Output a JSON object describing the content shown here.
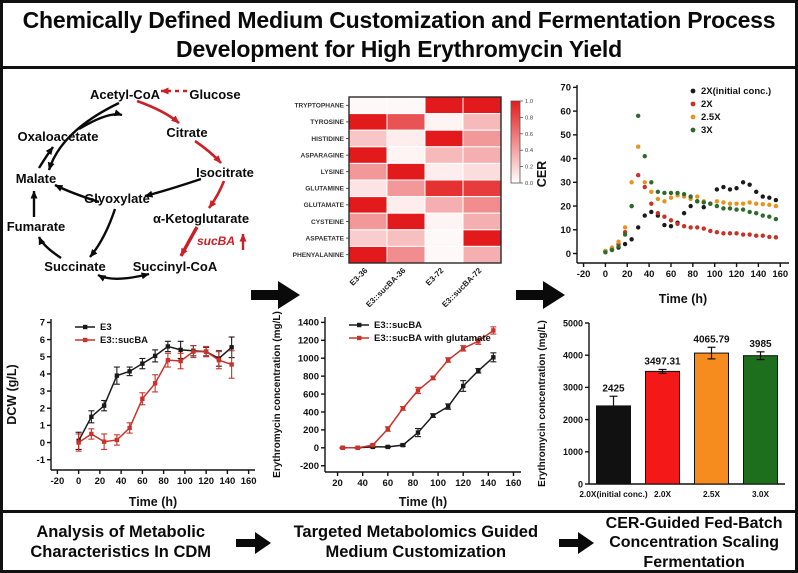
{
  "title": {
    "text": "Chemically Defined Medium Customization and Fermentation Process Development for High Erythromycin Yield"
  },
  "footer": {
    "steps": [
      "Analysis of Metabolic Characteristics In CDM",
      "Targeted Metabolomics Guided Medium Customization",
      "CER-Guided Fed-Batch Concentration Scaling Fermentation"
    ],
    "arrow_icon": "right-arrow"
  },
  "colors": {
    "accent_red": "#cc2027",
    "accent_orange": "#ef9019",
    "accent_green": "#1d7a1d",
    "black": "#141414",
    "heatmap_high": "#e31a1c",
    "heatmap_low": "#ffffff"
  },
  "pathway": {
    "nodes": [
      {
        "id": "Glucose",
        "label": "Glucose",
        "color": "#0a0a0a"
      },
      {
        "id": "Acetyl-CoA",
        "label": "Acetyl-CoA",
        "color": "#0a0a0a"
      },
      {
        "id": "Citrate",
        "label": "Citrate",
        "color": "#0a0a0a"
      },
      {
        "id": "Isocitrate",
        "label": "Isocitrate",
        "color": "#0a0a0a"
      },
      {
        "id": "α-Ketoglutarate",
        "label": "α-Ketoglutarate",
        "color": "#0a0a0a"
      },
      {
        "id": "Succinyl-CoA",
        "label": "Succinyl-CoA",
        "color": "#0a0a0a"
      },
      {
        "id": "Succinate",
        "label": "Succinate",
        "color": "#0a0a0a"
      },
      {
        "id": "Fumarate",
        "label": "Fumarate",
        "color": "#0a0a0a"
      },
      {
        "id": "Malate",
        "label": "Malate",
        "color": "#0a0a0a"
      },
      {
        "id": "Oxaloacetate",
        "label": "Oxaloacetate",
        "color": "#0a0a0a"
      },
      {
        "id": "Glyoxylate",
        "label": "Glyoxylate",
        "color": "#0a0a0a"
      }
    ],
    "edges": [
      {
        "from": "Glucose",
        "to": "Acetyl-CoA",
        "color": "red",
        "style": "dashed"
      },
      {
        "from": "Acetyl-CoA",
        "to": "Citrate",
        "color": "red"
      },
      {
        "from": "Citrate",
        "to": "Isocitrate",
        "color": "red"
      },
      {
        "from": "Isocitrate",
        "to": "α-Ketoglutarate",
        "color": "red"
      },
      {
        "from": "α-Ketoglutarate",
        "to": "Succinyl-CoA",
        "color": "red",
        "thick": true
      },
      {
        "from": "Succinyl-CoA",
        "to": "Succinate",
        "color": "black",
        "double": true
      },
      {
        "from": "Succinate",
        "to": "Fumarate",
        "color": "black"
      },
      {
        "from": "Fumarate",
        "to": "Malate",
        "color": "black"
      },
      {
        "from": "Malate",
        "to": "Oxaloacetate",
        "color": "black"
      },
      {
        "from": "Oxaloacetate",
        "to": "Citrate",
        "color": "black"
      },
      {
        "from": "Isocitrate",
        "to": "Glyoxylate",
        "color": "black"
      },
      {
        "from": "Glyoxylate",
        "to": "Malate",
        "color": "black"
      },
      {
        "from": "Acetyl-CoA",
        "to": "Malate",
        "color": "black"
      },
      {
        "from": "Glyoxylate",
        "to": "Succinate",
        "color": "black"
      }
    ],
    "gene_label": "sucBA",
    "gene_arrow": "up-arrow",
    "gene_color": "#cc2027"
  },
  "chart_data": [
    {
      "id": "amino-heatmap",
      "type": "heatmap",
      "rows": [
        "TRYPTOPHANE",
        "TYROSINE",
        "HISTIDINE",
        "ASPARAGINE",
        "LYSINE",
        "GLUTAMINE",
        "GLUTAMATE",
        "CYSTEINE",
        "ASPAETATE",
        "PHENYALANINE"
      ],
      "columns": [
        "E3-36",
        "E3::sucBA-36",
        "E3-72",
        "E3::sucBA-72"
      ],
      "values": [
        [
          0.03,
          0.03,
          1.0,
          1.0
        ],
        [
          1.0,
          0.75,
          0.05,
          0.3
        ],
        [
          0.25,
          0.08,
          1.0,
          0.45
        ],
        [
          1.0,
          0.05,
          0.3,
          0.35
        ],
        [
          0.45,
          1.0,
          0.08,
          0.15
        ],
        [
          0.12,
          0.45,
          0.9,
          0.85
        ],
        [
          1.0,
          0.08,
          0.35,
          0.5
        ],
        [
          0.45,
          1.0,
          0.05,
          0.35
        ],
        [
          0.22,
          0.28,
          0.03,
          1.0
        ],
        [
          1.0,
          0.5,
          0.03,
          0.35
        ]
      ],
      "colorbar_ticks": [
        "1.000",
        "0.8000",
        "0.6000",
        "0.4000",
        "0.2000",
        "0.000"
      ],
      "color_high": "#e31a1c",
      "color_low": "#ffffff"
    },
    {
      "id": "cer-scatter",
      "type": "scatter",
      "xlabel": "Time (h)",
      "ylabel": "CER",
      "xlim": [
        -26,
        168
      ],
      "ylim": [
        -4,
        71
      ],
      "xticks": [
        -20,
        0,
        20,
        40,
        60,
        80,
        100,
        120,
        140,
        160
      ],
      "yticks": [
        0,
        10,
        20,
        30,
        40,
        50,
        60,
        70
      ],
      "x": [
        0,
        6,
        12,
        18,
        24,
        30,
        36,
        42,
        48,
        54,
        60,
        66,
        72,
        78,
        84,
        90,
        96,
        102,
        108,
        114,
        120,
        126,
        132,
        138,
        144,
        150,
        156
      ],
      "series": [
        {
          "name": "2X(initial conc.)",
          "color": "#1a1a1a",
          "y": [
            1,
            1.5,
            2.5,
            4,
            6,
            11,
            16,
            17.5,
            16,
            12,
            11.5,
            13,
            17,
            20,
            22,
            19.5,
            21,
            27,
            28,
            27,
            27.5,
            30,
            29,
            26,
            24,
            23.5,
            22.5
          ]
        },
        {
          "name": "2X",
          "color": "#c93026",
          "y": [
            1,
            2,
            4,
            9,
            20,
            33,
            28,
            21,
            17,
            15.5,
            14,
            12.5,
            11.5,
            11,
            11,
            10.5,
            9.5,
            9,
            8.5,
            8.5,
            8.5,
            8,
            8,
            7.5,
            7.5,
            7,
            6.8
          ]
        },
        {
          "name": "2.5X",
          "color": "#e8921f",
          "y": [
            1,
            2.5,
            5,
            11,
            30,
            45,
            30,
            26,
            23,
            22,
            23.5,
            24.5,
            24,
            23,
            24,
            22,
            21,
            22,
            21.5,
            21,
            21,
            21,
            21.5,
            21,
            20.8,
            20.5,
            20
          ]
        },
        {
          "name": "3X",
          "color": "#2d6b2d",
          "y": [
            0.5,
            1.5,
            3,
            8,
            20,
            58,
            41,
            30,
            26,
            25.5,
            25.5,
            25.5,
            25,
            24,
            22,
            21.5,
            21,
            20,
            19,
            19,
            18.5,
            18.5,
            17.5,
            17,
            16,
            15.5,
            14.5
          ]
        }
      ],
      "legend_position": "top-right"
    },
    {
      "id": "dcw-line",
      "type": "line",
      "xlabel": "Time (h)",
      "ylabel": "DCW (g/L)",
      "xlim": [
        -26,
        166
      ],
      "ylim": [
        -1.6,
        7.2
      ],
      "xticks": [
        -20,
        0,
        20,
        40,
        60,
        80,
        100,
        120,
        140,
        160
      ],
      "yticks": [
        -1,
        0,
        1,
        2,
        3,
        4,
        5,
        6,
        7
      ],
      "x": [
        0,
        12,
        24,
        36,
        48,
        60,
        72,
        84,
        96,
        108,
        120,
        132,
        144
      ],
      "series": [
        {
          "name": "E3",
          "color": "#1a1a1a",
          "y": [
            0.1,
            1.5,
            2.15,
            3.9,
            4.15,
            4.6,
            5.05,
            5.6,
            5.4,
            5.35,
            5.3,
            4.9,
            5.55
          ],
          "err": [
            0.5,
            0.35,
            0.3,
            0.5,
            0.25,
            0.3,
            0.35,
            0.3,
            0.5,
            0.3,
            0.25,
            0.45,
            0.6
          ]
        },
        {
          "name": "E3::sucBA",
          "color": "#c8332b",
          "y": [
            0.0,
            0.5,
            0.05,
            0.15,
            0.85,
            2.55,
            3.45,
            4.8,
            4.75,
            5.3,
            5.3,
            4.8,
            4.55
          ],
          "err": [
            0.5,
            0.3,
            0.45,
            0.3,
            0.3,
            0.35,
            0.5,
            0.4,
            0.45,
            0.35,
            0.3,
            0.5,
            0.8
          ]
        }
      ],
      "legend_position": "top-left"
    },
    {
      "id": "ery-line",
      "type": "line",
      "xlabel": "Time (h)",
      "ylabel": "Erythromycin concentration (mg/L)",
      "xlim": [
        10,
        166
      ],
      "ylim": [
        -270,
        1460
      ],
      "xticks": [
        20,
        40,
        60,
        80,
        100,
        120,
        140,
        160
      ],
      "yticks": [
        -200,
        0,
        200,
        400,
        600,
        800,
        1000,
        1200,
        1400
      ],
      "x": [
        24,
        36,
        48,
        60,
        72,
        84,
        96,
        108,
        120,
        132,
        144
      ],
      "series": [
        {
          "name": "E3::sucBA",
          "color": "#1a1a1a",
          "y": [
            0,
            0,
            10,
            10,
            30,
            170,
            360,
            460,
            690,
            860,
            1010
          ],
          "err": [
            5,
            5,
            8,
            8,
            12,
            45,
            20,
            30,
            60,
            25,
            50
          ]
        },
        {
          "name": "E3::sucBA with glutamate",
          "color": "#c8332b",
          "y": [
            0,
            0,
            30,
            210,
            440,
            640,
            780,
            980,
            1110,
            1190,
            1310
          ],
          "err": [
            5,
            5,
            12,
            25,
            20,
            35,
            20,
            25,
            30,
            35,
            40
          ]
        }
      ],
      "legend_position": "top-left"
    },
    {
      "id": "ery-bar",
      "type": "bar",
      "ylabel": "Erythromycin concentration (mg/L)",
      "ylim": [
        0,
        5000
      ],
      "yticks": [
        0,
        1000,
        2000,
        3000,
        4000,
        5000
      ],
      "categories": [
        "2.0X(initial conc.)",
        "2.0X",
        "2.5X",
        "3.0X"
      ],
      "values": [
        2425,
        3497.31,
        4065.79,
        3985
      ],
      "value_labels": [
        "2425",
        "3497.31",
        "4065.79",
        "3985"
      ],
      "errors": [
        300,
        60,
        180,
        120
      ],
      "bar_colors": [
        "#111111",
        "#f51818",
        "#f78c1e",
        "#1d6e1d"
      ]
    }
  ]
}
